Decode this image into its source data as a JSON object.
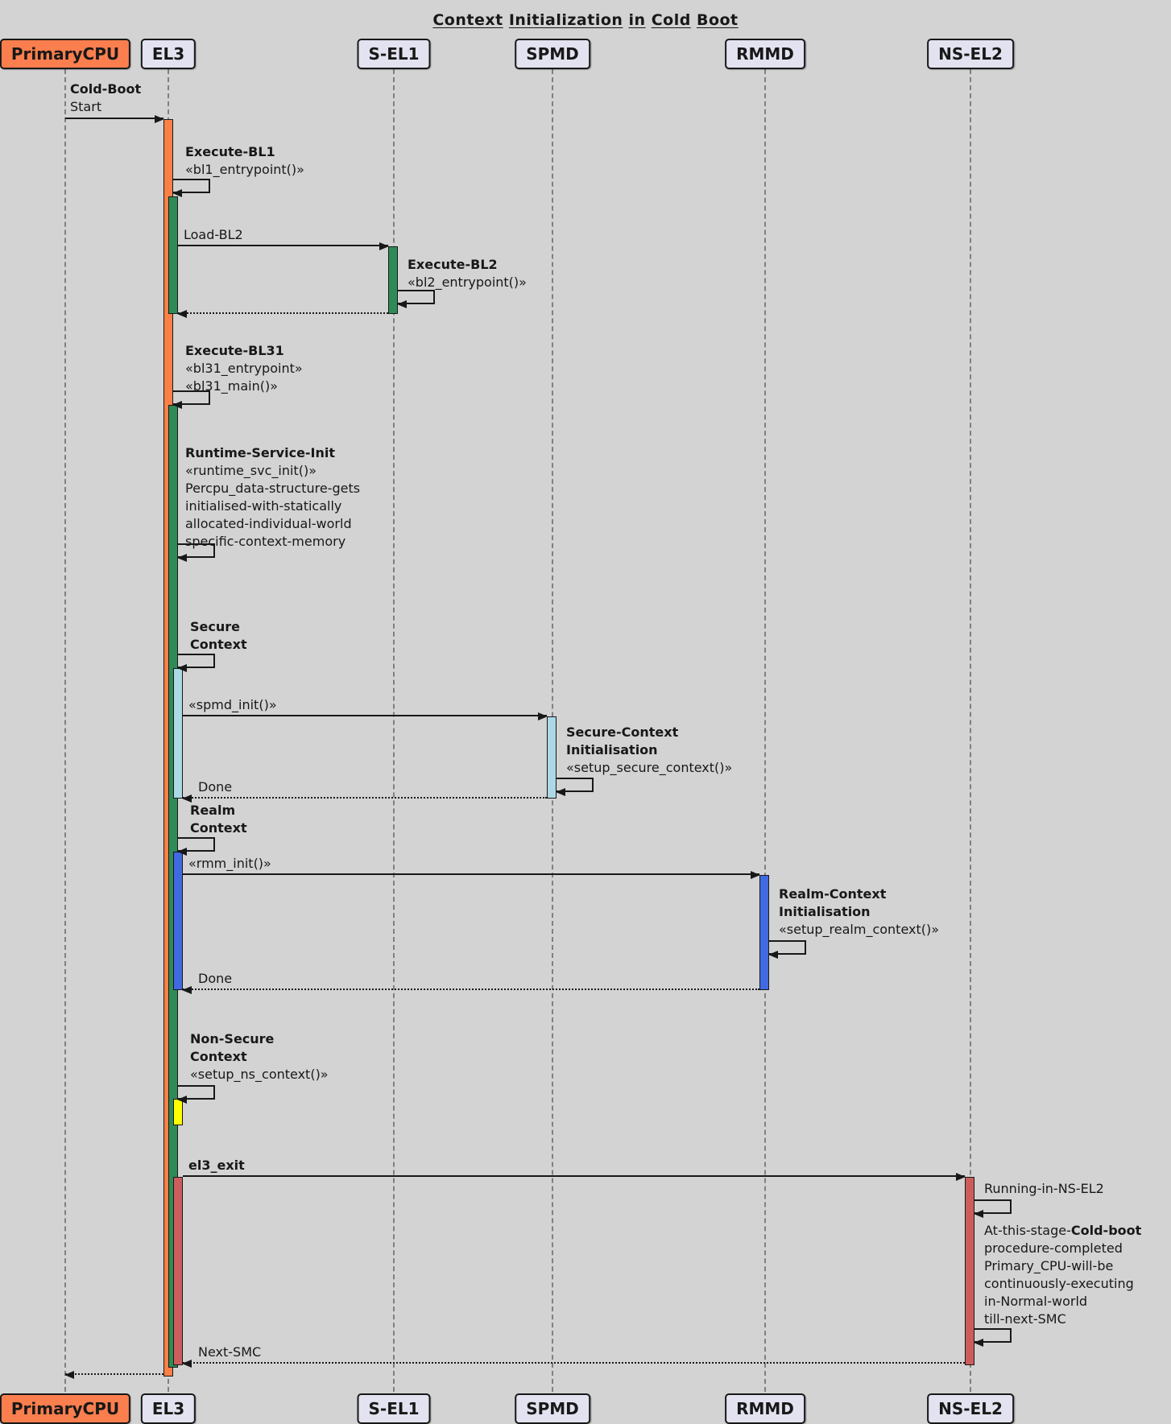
{
  "title": "Context Initialization in Cold Boot",
  "participants": [
    {
      "label": "PrimaryCPU"
    },
    {
      "label": "EL3"
    },
    {
      "label": "S-EL1"
    },
    {
      "label": "SPMD"
    },
    {
      "label": "RMMD"
    },
    {
      "label": "NS-EL2"
    }
  ],
  "messages": {
    "cold_boot": {
      "line1": "Cold-Boot",
      "line2": "Start"
    },
    "execute_bl1": {
      "line1": "Execute-BL1",
      "line2": "«bl1_entrypoint()»"
    },
    "load_bl2": {
      "label": "Load-BL2"
    },
    "execute_bl2": {
      "line1": "Execute-BL2",
      "line2": "«bl2_entrypoint()»"
    },
    "execute_bl31": {
      "line1": "Execute-BL31",
      "line2": "«bl31_entrypoint»",
      "line3": "«bl31_main()»"
    },
    "runtime_service_init": {
      "line1": "Runtime-Service-Init",
      "line2": "«runtime_svc_init()»",
      "line3": "Percpu_data-structure-gets",
      "line4": "initialised-with-statically",
      "line5": "allocated-individual-world",
      "line6": "specific-context-memory"
    },
    "secure_context": {
      "line1": "Secure",
      "line2": "Context"
    },
    "spmd_init": {
      "label": "«spmd_init()»"
    },
    "secure_context_init": {
      "line1": "Secure-Context",
      "line2": "Initialisation",
      "line3": "«setup_secure_context()»"
    },
    "done_secure": {
      "label": "Done"
    },
    "realm_context": {
      "line1": "Realm",
      "line2": "Context"
    },
    "rmm_init": {
      "label": "«rmm_init()»"
    },
    "realm_context_init": {
      "line1": "Realm-Context",
      "line2": "Initialisation",
      "line3": "«setup_realm_context()»"
    },
    "done_realm": {
      "label": "Done"
    },
    "ns_context": {
      "line1": "Non-Secure",
      "line2": "Context",
      "line3": "«setup_ns_context()»"
    },
    "el3_exit": {
      "label": "el3_exit"
    },
    "running_ns": {
      "label": "Running-in-NS-EL2"
    },
    "cold_boot_note": {
      "prefix": "At-this-stage-",
      "bold": "Cold-boot",
      "line2": "procedure-completed",
      "line3": "Primary_CPU-will-be",
      "line4": "continuously-executing",
      "line5": "in-Normal-world",
      "line6": "till-next-SMC"
    },
    "next_smc": {
      "label": "Next-SMC"
    }
  },
  "colors": {
    "background": "#D3D3D3",
    "participant_fill": "#E2E2F0",
    "primary_cpu_fill": "#FB7E4E",
    "el3_activation_orange": "#FB8045",
    "bl_activation_green": "#2E8B57",
    "secure_activation_lightblue": "#ADD8E6",
    "realm_activation_blue": "#4169E1",
    "ns_activation_yellow": "#FFFF00",
    "exit_activation_red": "#CD5C5C",
    "arrow": "#181818",
    "lifeline": "#808080"
  }
}
